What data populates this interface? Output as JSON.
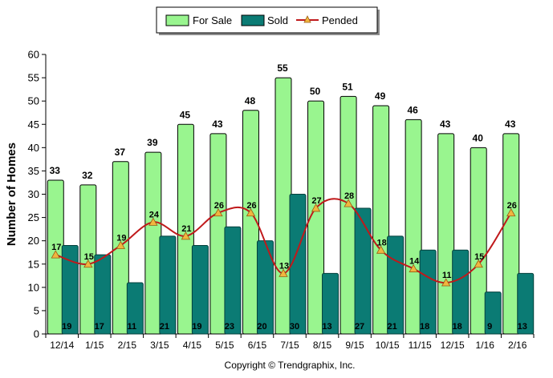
{
  "chart_data": {
    "type": "bar",
    "categories": [
      "12/14",
      "1/15",
      "2/15",
      "3/15",
      "4/15",
      "5/15",
      "6/15",
      "7/15",
      "8/15",
      "9/15",
      "10/15",
      "11/15",
      "12/15",
      "1/16",
      "2/16"
    ],
    "series": [
      {
        "name": "For Sale",
        "type": "bar",
        "color": "#99f58f",
        "values": [
          33,
          32,
          37,
          39,
          45,
          43,
          48,
          55,
          50,
          51,
          49,
          46,
          43,
          40,
          43
        ]
      },
      {
        "name": "Sold",
        "type": "bar",
        "color": "#0b7b74",
        "values": [
          19,
          17,
          11,
          21,
          19,
          23,
          20,
          30,
          13,
          27,
          21,
          18,
          18,
          9,
          13
        ]
      },
      {
        "name": "Pended",
        "type": "line",
        "color": "#c0191b",
        "marker_color": "#f0b640",
        "values": [
          17,
          15,
          19,
          24,
          21,
          26,
          26,
          13,
          27,
          28,
          18,
          14,
          11,
          15,
          26
        ]
      }
    ],
    "ylabel": "Number of Homes",
    "ylim": [
      0,
      60
    ],
    "yticks": [
      0,
      5,
      10,
      15,
      20,
      25,
      30,
      35,
      40,
      45,
      50,
      55,
      60
    ],
    "grid": false,
    "legend_position": "top-center",
    "footer": "Copyright © Trendgraphix, Inc."
  }
}
